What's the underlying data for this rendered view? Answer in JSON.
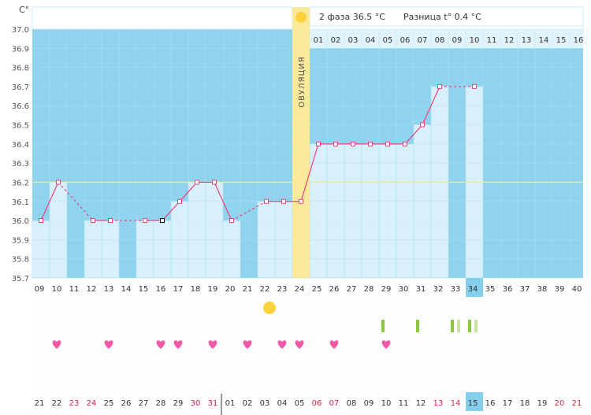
{
  "chart_data": {
    "type": "line",
    "ylabel": "C°",
    "ylim": [
      35.7,
      37.0
    ],
    "yticks": [
      "37.0",
      "36.9",
      "36.8",
      "36.7",
      "36.6",
      "36.5",
      "36.4",
      "36.3",
      "36.2",
      "36.1",
      "36.0",
      "35.9",
      "35.8",
      "35.7"
    ],
    "coverline": 36.2,
    "ovulation_label": "ОВУЛЯЦИЯ",
    "ovulation_cycle_day": 24,
    "phase2_info": "2 фаза 36.5 °C",
    "difference_info": "Разница t° 0.4 °C",
    "cycle_days": [
      "09",
      "10",
      "11",
      "12",
      "13",
      "14",
      "15",
      "16",
      "17",
      "18",
      "19",
      "20",
      "21",
      "22",
      "23",
      "24",
      "25",
      "26",
      "27",
      "28",
      "29",
      "30",
      "31",
      "32",
      "33",
      "34",
      "35",
      "36",
      "37",
      "38",
      "39",
      "40"
    ],
    "current_cycle_day": "34",
    "phase2_day_numbers": [
      "01",
      "02",
      "03",
      "04",
      "05",
      "06",
      "07",
      "08",
      "09",
      "10",
      "11",
      "12",
      "13",
      "14",
      "15",
      "16"
    ],
    "calendar_dates": [
      {
        "t": "21",
        "weekend": false
      },
      {
        "t": "22",
        "weekend": false
      },
      {
        "t": "23",
        "weekend": true
      },
      {
        "t": "24",
        "weekend": true
      },
      {
        "t": "25",
        "weekend": false
      },
      {
        "t": "26",
        "weekend": false
      },
      {
        "t": "27",
        "weekend": false
      },
      {
        "t": "28",
        "weekend": false
      },
      {
        "t": "29",
        "weekend": false
      },
      {
        "t": "30",
        "weekend": true
      },
      {
        "t": "31",
        "weekend": true
      },
      {
        "t": "01",
        "weekend": false
      },
      {
        "t": "02",
        "weekend": false
      },
      {
        "t": "03",
        "weekend": false
      },
      {
        "t": "04",
        "weekend": false
      },
      {
        "t": "05",
        "weekend": false
      },
      {
        "t": "06",
        "weekend": true
      },
      {
        "t": "07",
        "weekend": true
      },
      {
        "t": "08",
        "weekend": false
      },
      {
        "t": "09",
        "weekend": false
      },
      {
        "t": "10",
        "weekend": false
      },
      {
        "t": "11",
        "weekend": false
      },
      {
        "t": "12",
        "weekend": false
      },
      {
        "t": "13",
        "weekend": true
      },
      {
        "t": "14",
        "weekend": true
      },
      {
        "t": "15",
        "weekend": false
      },
      {
        "t": "16",
        "weekend": false
      },
      {
        "t": "17",
        "weekend": false
      },
      {
        "t": "18",
        "weekend": false
      },
      {
        "t": "19",
        "weekend": false
      },
      {
        "t": "20",
        "weekend": true
      },
      {
        "t": "21",
        "weekend": true
      }
    ],
    "current_date": "15",
    "series": [
      {
        "values": [
          36.0,
          36.2,
          null,
          36.0,
          36.0,
          null,
          36.0,
          36.0,
          36.1,
          36.2,
          36.2,
          36.0,
          null,
          36.1,
          36.1,
          36.1,
          36.4,
          36.4,
          36.4,
          36.4,
          36.4,
          36.4,
          36.5,
          36.7,
          null,
          36.7,
          null,
          null,
          null,
          null,
          null,
          null
        ]
      }
    ],
    "heart_days": [
      "10",
      "13",
      "16",
      "17",
      "19",
      "21",
      "23",
      "24",
      "26",
      "29"
    ],
    "sun_day": "22",
    "green_marks": [
      {
        "day": "29",
        "shade": "dark"
      },
      {
        "day": "31",
        "shade": "dark"
      },
      {
        "day": "33",
        "shade": "dark"
      },
      {
        "day": "33",
        "shade": "light"
      },
      {
        "day": "34",
        "shade": "dark"
      },
      {
        "day": "34",
        "shade": "light"
      }
    ]
  },
  "colors": {
    "background": "#8fd3ee",
    "bar_fill": "#d8f0fb",
    "line": "#e8437b",
    "ovulation": "#fbe99a",
    "coverline": "#f3ea8c",
    "heart": "#f25aa8",
    "sun": "#fcd33f",
    "weekend_text": "#d3244b",
    "current_day_bg": "#86cfea",
    "green_dark": "#8cc63f",
    "green_light": "#c8e3a0"
  }
}
